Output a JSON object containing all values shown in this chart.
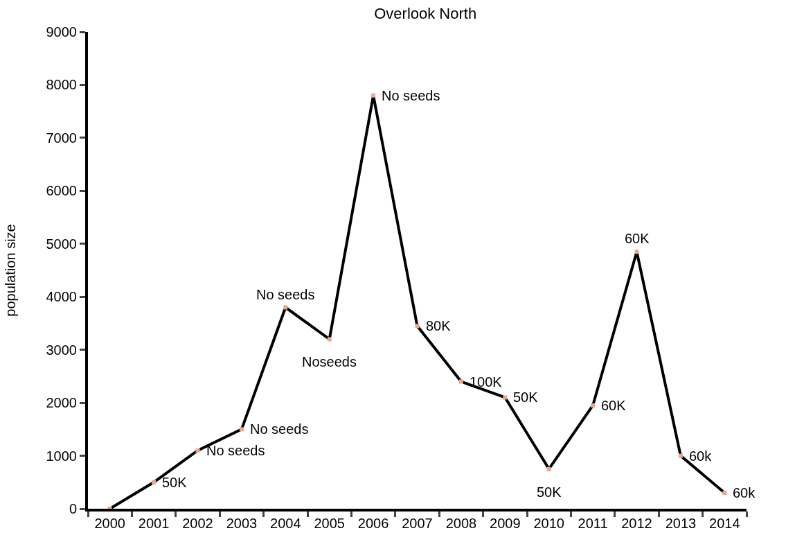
{
  "chart_data": {
    "type": "line",
    "title": "Overlook North",
    "ylabel": "population size",
    "categories": [
      "2000",
      "2001",
      "2002",
      "2003",
      "2004",
      "2005",
      "2006",
      "2007",
      "2008",
      "2009",
      "2010",
      "2011",
      "2012",
      "2013",
      "2014"
    ],
    "series": [
      {
        "color": "#000000",
        "marker": "none",
        "values": [
          0,
          500,
          1100,
          1500,
          3800,
          3200,
          7800,
          3450,
          2400,
          2100,
          750,
          1950,
          4850,
          1000,
          300
        ]
      },
      {
        "type": "scatter",
        "color": "#e8a88c",
        "marker": "square",
        "values": [
          0,
          500,
          1100,
          1500,
          3800,
          3200,
          7800,
          3450,
          2400,
          2100,
          750,
          1950,
          4850,
          1000,
          300
        ]
      }
    ],
    "ylim": [
      0,
      9000
    ],
    "yticks": [
      0,
      1000,
      2000,
      3000,
      4000,
      5000,
      6000,
      7000,
      8000,
      9000
    ],
    "annotations": [
      {
        "text": "50K",
        "x": "2001",
        "y": 500
      },
      {
        "text": "No seeds",
        "x": "2002",
        "y": 1100
      },
      {
        "text": "No seeds",
        "x": "2003",
        "y": 1500
      },
      {
        "text": "No seeds",
        "x": "2004",
        "y": 3800
      },
      {
        "text": "Noseeds",
        "x": "2005",
        "y": 3200
      },
      {
        "text": "No seeds",
        "x": "2006",
        "y": 7800
      },
      {
        "text": "80K",
        "x": "2007",
        "y": 3450
      },
      {
        "text": "100K",
        "x": "2008",
        "y": 2400
      },
      {
        "text": "50K",
        "x": "2009",
        "y": 2100
      },
      {
        "text": "50K",
        "x": "2010",
        "y": 750
      },
      {
        "text": "60K",
        "x": "2011",
        "y": 1950
      },
      {
        "text": "60K",
        "x": "2012",
        "y": 4850
      },
      {
        "text": "60k",
        "x": "2013",
        "y": 1000
      },
      {
        "text": "60k",
        "x": "2014",
        "y": 300
      }
    ]
  }
}
